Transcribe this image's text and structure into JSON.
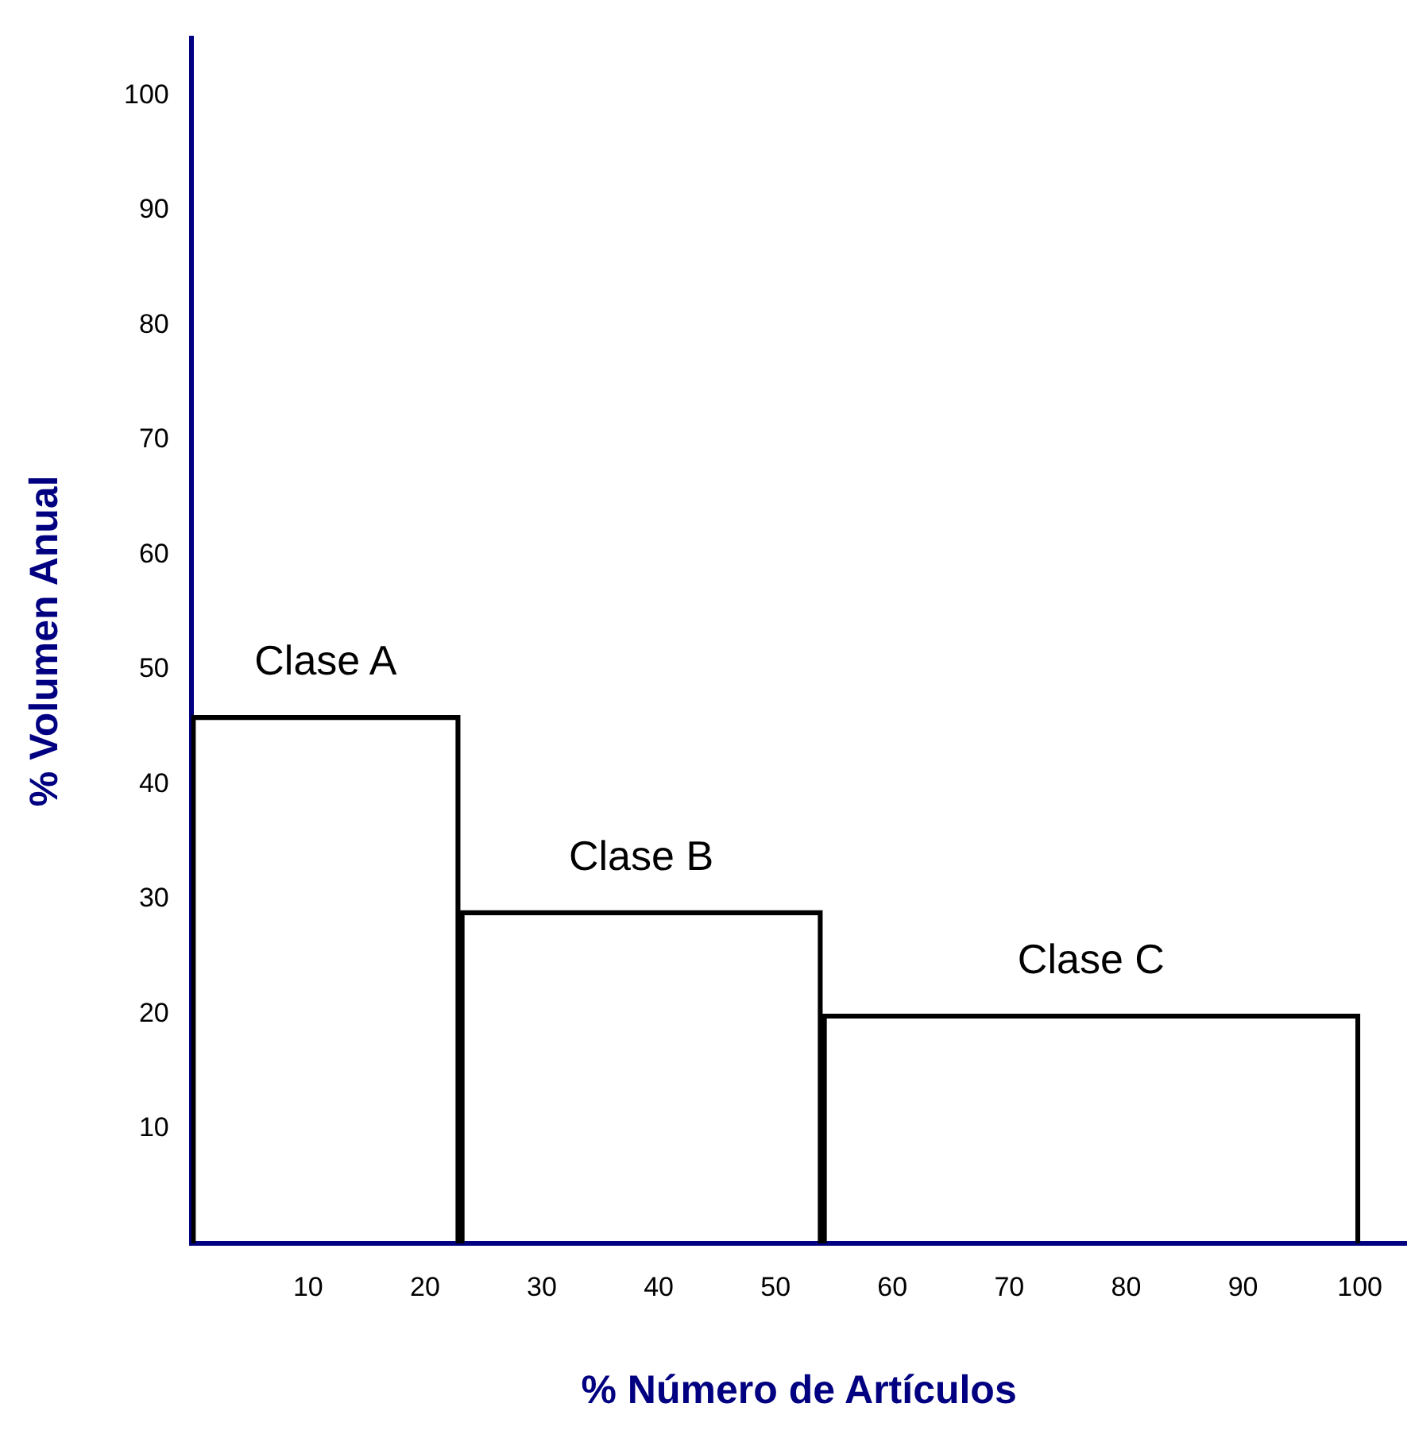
{
  "chart_data": {
    "type": "histogram",
    "xlabel": "% Número de Artículos",
    "ylabel": "% Volumen Anual",
    "bins": [
      0,
      23,
      54,
      100
    ],
    "values": [
      46,
      29,
      20
    ],
    "color": "#000000",
    "xlim": [
      0,
      104
    ],
    "xticks": [
      10,
      20,
      30,
      40,
      50,
      60,
      70,
      80,
      90,
      100
    ],
    "ylim": [
      0,
      105
    ],
    "yticks": [
      10,
      20,
      30,
      40,
      50,
      60,
      70,
      80,
      90,
      100
    ],
    "grid": false,
    "legend": false,
    "annotations": [
      "Clase A",
      "Clase B",
      "Clase C"
    ]
  }
}
